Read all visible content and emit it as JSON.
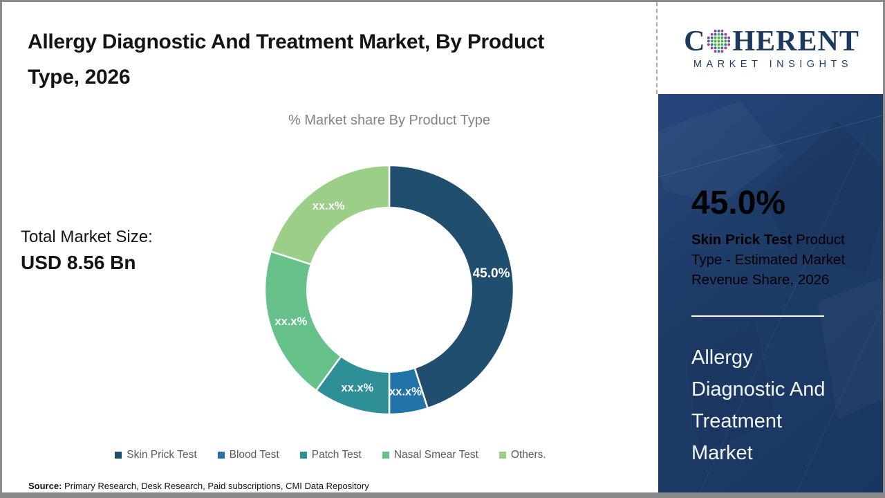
{
  "page": {
    "title": "Allergy Diagnostic And Treatment Market, By Product Type, 2026",
    "subtitle": "% Market share By Product Type",
    "total_market_label": "Total Market Size:",
    "total_market_value": "USD 8.56 Bn",
    "source_label": "Source:",
    "source_text": " Primary Research, Desk Research, Paid subscriptions, CMI Data Repository"
  },
  "chart_data": {
    "type": "pie",
    "subtype": "donut",
    "title": "% Market share By Product Type",
    "categories": [
      "Skin Prick Test",
      "Blood Test",
      "Patch Test",
      "Nasal Smear Test",
      "Others."
    ],
    "values": [
      45.0,
      5.0,
      10.0,
      20.0,
      20.0
    ],
    "value_labels": [
      "45.0%",
      "xx.x%",
      "xx.x%",
      "xx.x%",
      "xx.x%"
    ],
    "colors": [
      "#1F4E6E",
      "#2173A8",
      "#2E8F96",
      "#66C18B",
      "#9BCF87"
    ],
    "start_angle_deg": 0,
    "direction": "clockwise",
    "inner_radius_ratio": 0.66,
    "legend_position": "bottom"
  },
  "sidebar": {
    "logo": {
      "word_start": "C",
      "word_end": "HERENT",
      "tagline": "MARKET INSIGHTS"
    },
    "stat_value": "45.0%",
    "stat_bold": "Skin Prick Test",
    "stat_rest": " Product Type - Estimated Market Revenue Share, 2026",
    "market_name": "Allergy Diagnostic And Treatment Market",
    "panel_color": "#1D3A66",
    "accent_white": "#FFFFFF"
  }
}
